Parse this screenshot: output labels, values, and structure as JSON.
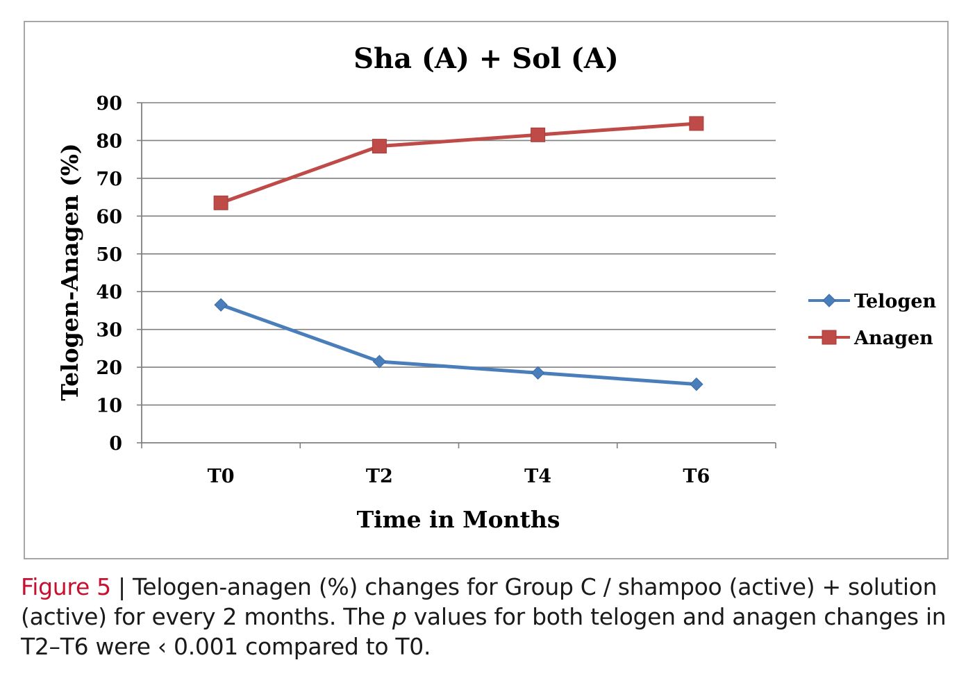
{
  "chart_data": {
    "type": "line",
    "title": "Sha (A) + Sol (A)",
    "xlabel": "Time in Months",
    "ylabel": "Telogen-Anagen (%)",
    "categories": [
      "T0",
      "T2",
      "T4",
      "T6"
    ],
    "ylim": [
      0,
      90
    ],
    "yticks": [
      0,
      10,
      20,
      30,
      40,
      50,
      60,
      70,
      80,
      90
    ],
    "grid": true,
    "legend_position": "right",
    "series": [
      {
        "name": "Telogen",
        "values": [
          36.5,
          21.5,
          18.5,
          15.5
        ],
        "color": "#4a7ebb",
        "marker": "diamond"
      },
      {
        "name": "Anagen",
        "values": [
          63.5,
          78.5,
          81.5,
          84.5
        ],
        "color": "#be4b48",
        "marker": "square"
      }
    ]
  },
  "caption": {
    "label": "Figure 5",
    "separator": " | ",
    "text_before_p": "Telogen-anagen (%) changes for Group C / shampoo (active) + solution (active) for every 2 months. The ",
    "p_symbol": "p",
    "text_after_p": " values for both telogen and anagen changes in T2–T6 were ‹ 0.001 compared to T0.",
    "label_color": "#c8102e"
  }
}
